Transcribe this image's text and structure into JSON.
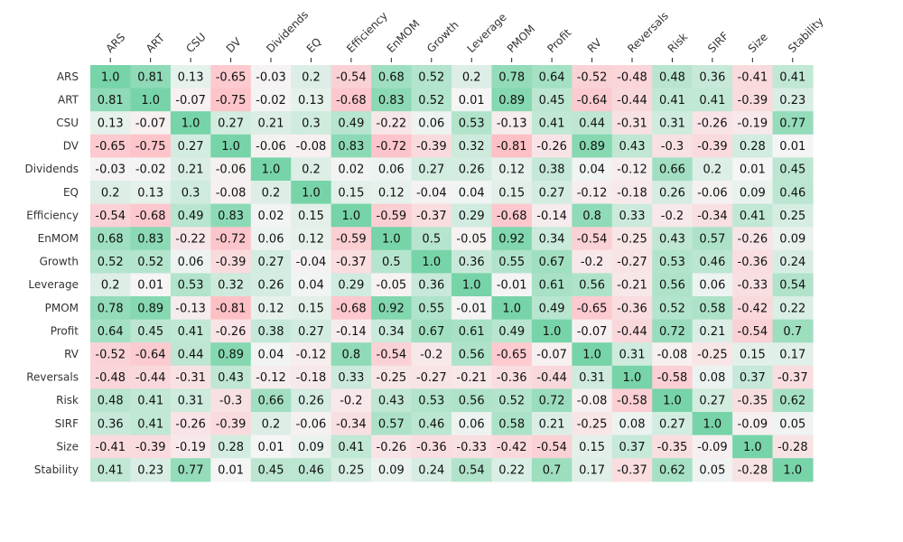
{
  "chart_data": {
    "type": "heatmap",
    "title": "",
    "xlabel": "",
    "ylabel": "",
    "color_scale": {
      "negative": "#ffb3ba",
      "zero": "#f5f5f5",
      "positive": "#77d4a8"
    },
    "value_range": [
      -1,
      1
    ],
    "columns": [
      "ARS",
      "ART",
      "CSU",
      "DV",
      "Dividends",
      "EQ",
      "Efficiency",
      "EnMOM",
      "Growth",
      "Leverage",
      "PMOM",
      "Profit",
      "RV",
      "Reversals",
      "Risk",
      "SIRF",
      "Size",
      "Stability"
    ],
    "rows": [
      "ARS",
      "ART",
      "CSU",
      "DV",
      "Dividends",
      "EQ",
      "Efficiency",
      "EnMOM",
      "Growth",
      "Leverage",
      "PMOM",
      "Profit",
      "RV",
      "Reversals",
      "Risk",
      "SIRF",
      "Size",
      "Stability"
    ],
    "values": [
      [
        "1.0",
        "0.81",
        "0.13",
        "-0.65",
        "-0.03",
        "0.2",
        "-0.54",
        "0.68",
        "0.52",
        "0.2",
        "0.78",
        "0.64",
        "-0.52",
        "-0.48",
        "0.48",
        "0.36",
        "-0.41",
        "0.41"
      ],
      [
        "0.81",
        "1.0",
        "-0.07",
        "-0.75",
        "-0.02",
        "0.13",
        "-0.68",
        "0.83",
        "0.52",
        "0.01",
        "0.89",
        "0.45",
        "-0.64",
        "-0.44",
        "0.41",
        "0.41",
        "-0.39",
        "0.23"
      ],
      [
        "0.13",
        "-0.07",
        "1.0",
        "0.27",
        "0.21",
        "0.3",
        "0.49",
        "-0.22",
        "0.06",
        "0.53",
        "-0.13",
        "0.41",
        "0.44",
        "-0.31",
        "0.31",
        "-0.26",
        "-0.19",
        "0.77"
      ],
      [
        "-0.65",
        "-0.75",
        "0.27",
        "1.0",
        "-0.06",
        "-0.08",
        "0.83",
        "-0.72",
        "-0.39",
        "0.32",
        "-0.81",
        "-0.26",
        "0.89",
        "0.43",
        "-0.3",
        "-0.39",
        "0.28",
        "0.01"
      ],
      [
        "-0.03",
        "-0.02",
        "0.21",
        "-0.06",
        "1.0",
        "0.2",
        "0.02",
        "0.06",
        "0.27",
        "0.26",
        "0.12",
        "0.38",
        "0.04",
        "-0.12",
        "0.66",
        "0.2",
        "0.01",
        "0.45"
      ],
      [
        "0.2",
        "0.13",
        "0.3",
        "-0.08",
        "0.2",
        "1.0",
        "0.15",
        "0.12",
        "-0.04",
        "0.04",
        "0.15",
        "0.27",
        "-0.12",
        "-0.18",
        "0.26",
        "-0.06",
        "0.09",
        "0.46"
      ],
      [
        "-0.54",
        "-0.68",
        "0.49",
        "0.83",
        "0.02",
        "0.15",
        "1.0",
        "-0.59",
        "-0.37",
        "0.29",
        "-0.68",
        "-0.14",
        "0.8",
        "0.33",
        "-0.2",
        "-0.34",
        "0.41",
        "0.25"
      ],
      [
        "0.68",
        "0.83",
        "-0.22",
        "-0.72",
        "0.06",
        "0.12",
        "-0.59",
        "1.0",
        "0.5",
        "-0.05",
        "0.92",
        "0.34",
        "-0.54",
        "-0.25",
        "0.43",
        "0.57",
        "-0.26",
        "0.09"
      ],
      [
        "0.52",
        "0.52",
        "0.06",
        "-0.39",
        "0.27",
        "-0.04",
        "-0.37",
        "0.5",
        "1.0",
        "0.36",
        "0.55",
        "0.67",
        "-0.2",
        "-0.27",
        "0.53",
        "0.46",
        "-0.36",
        "0.24"
      ],
      [
        "0.2",
        "0.01",
        "0.53",
        "0.32",
        "0.26",
        "0.04",
        "0.29",
        "-0.05",
        "0.36",
        "1.0",
        "-0.01",
        "0.61",
        "0.56",
        "-0.21",
        "0.56",
        "0.06",
        "-0.33",
        "0.54"
      ],
      [
        "0.78",
        "0.89",
        "-0.13",
        "-0.81",
        "0.12",
        "0.15",
        "-0.68",
        "0.92",
        "0.55",
        "-0.01",
        "1.0",
        "0.49",
        "-0.65",
        "-0.36",
        "0.52",
        "0.58",
        "-0.42",
        "0.22"
      ],
      [
        "0.64",
        "0.45",
        "0.41",
        "-0.26",
        "0.38",
        "0.27",
        "-0.14",
        "0.34",
        "0.67",
        "0.61",
        "0.49",
        "1.0",
        "-0.07",
        "-0.44",
        "0.72",
        "0.21",
        "-0.54",
        "0.7"
      ],
      [
        "-0.52",
        "-0.64",
        "0.44",
        "0.89",
        "0.04",
        "-0.12",
        "0.8",
        "-0.54",
        "-0.2",
        "0.56",
        "-0.65",
        "-0.07",
        "1.0",
        "0.31",
        "-0.08",
        "-0.25",
        "0.15",
        "0.17"
      ],
      [
        "-0.48",
        "-0.44",
        "-0.31",
        "0.43",
        "-0.12",
        "-0.18",
        "0.33",
        "-0.25",
        "-0.27",
        "-0.21",
        "-0.36",
        "-0.44",
        "0.31",
        "1.0",
        "-0.58",
        "0.08",
        "0.37",
        "-0.37"
      ],
      [
        "0.48",
        "0.41",
        "0.31",
        "-0.3",
        "0.66",
        "0.26",
        "-0.2",
        "0.43",
        "0.53",
        "0.56",
        "0.52",
        "0.72",
        "-0.08",
        "-0.58",
        "1.0",
        "0.27",
        "-0.35",
        "0.62"
      ],
      [
        "0.36",
        "0.41",
        "-0.26",
        "-0.39",
        "0.2",
        "-0.06",
        "-0.34",
        "0.57",
        "0.46",
        "0.06",
        "0.58",
        "0.21",
        "-0.25",
        "0.08",
        "0.27",
        "1.0",
        "-0.09",
        "0.05"
      ],
      [
        "-0.41",
        "-0.39",
        "-0.19",
        "0.28",
        "0.01",
        "0.09",
        "0.41",
        "-0.26",
        "-0.36",
        "-0.33",
        "-0.42",
        "-0.54",
        "0.15",
        "0.37",
        "-0.35",
        "-0.09",
        "1.0",
        "-0.28"
      ],
      [
        "0.41",
        "0.23",
        "0.77",
        "0.01",
        "0.45",
        "0.46",
        "0.25",
        "0.09",
        "0.24",
        "0.54",
        "0.22",
        "0.7",
        "0.17",
        "-0.37",
        "0.62",
        "0.05",
        "-0.28",
        "1.0"
      ]
    ]
  }
}
